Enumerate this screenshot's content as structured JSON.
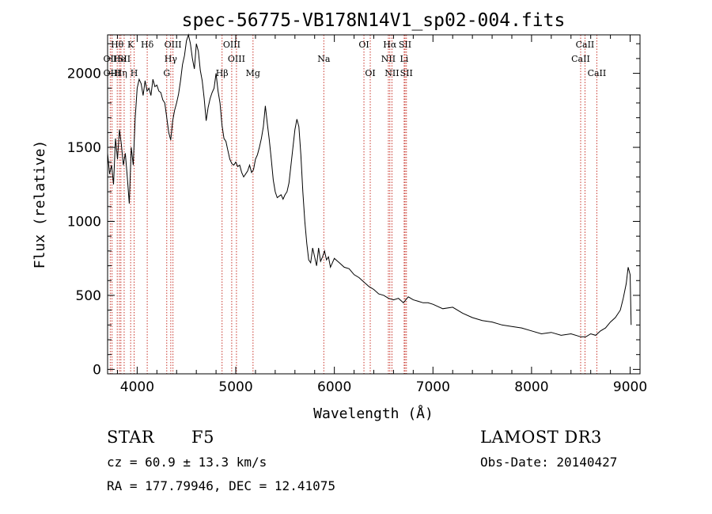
{
  "chart_data": {
    "type": "line",
    "title": "spec-56775-VB178N14V1_sp02-004.fits",
    "xlabel": "Wavelength (Å)",
    "ylabel": "Flux (relative)",
    "xlim": [
      3700,
      9100
    ],
    "ylim": [
      -30,
      2260
    ],
    "xticks": [
      4000,
      5000,
      6000,
      7000,
      8000,
      9000
    ],
    "yticks": [
      0,
      500,
      1000,
      1500,
      2000
    ],
    "series": [
      {
        "name": "flux",
        "x": [
          3700,
          3720,
          3740,
          3760,
          3780,
          3800,
          3820,
          3840,
          3860,
          3880,
          3900,
          3920,
          3940,
          3960,
          3980,
          4000,
          4020,
          4040,
          4060,
          4080,
          4100,
          4120,
          4140,
          4160,
          4180,
          4200,
          4220,
          4240,
          4260,
          4280,
          4300,
          4320,
          4340,
          4360,
          4380,
          4400,
          4420,
          4440,
          4460,
          4480,
          4500,
          4520,
          4540,
          4560,
          4580,
          4600,
          4620,
          4640,
          4660,
          4680,
          4700,
          4720,
          4740,
          4760,
          4780,
          4800,
          4820,
          4840,
          4860,
          4880,
          4900,
          4920,
          4940,
          4960,
          4980,
          5000,
          5020,
          5040,
          5060,
          5080,
          5100,
          5120,
          5140,
          5160,
          5180,
          5200,
          5220,
          5240,
          5260,
          5280,
          5300,
          5320,
          5340,
          5360,
          5380,
          5400,
          5420,
          5440,
          5460,
          5480,
          5500,
          5520,
          5540,
          5560,
          5580,
          5600,
          5620,
          5640,
          5660,
          5680,
          5700,
          5720,
          5740,
          5760,
          5780,
          5800,
          5820,
          5840,
          5860,
          5880,
          5900,
          5920,
          5940,
          5960,
          5980,
          6000,
          6050,
          6100,
          6150,
          6200,
          6250,
          6300,
          6350,
          6400,
          6450,
          6500,
          6550,
          6600,
          6650,
          6700,
          6750,
          6800,
          6850,
          6900,
          6950,
          7000,
          7100,
          7200,
          7300,
          7400,
          7500,
          7600,
          7700,
          7800,
          7900,
          8000,
          8100,
          8200,
          8300,
          8400,
          8500,
          8550,
          8600,
          8650,
          8700,
          8750,
          8800,
          8850,
          8900,
          8930,
          8960,
          8980,
          9000,
          9010
        ],
        "values": [
          1460,
          1320,
          1380,
          1250,
          1560,
          1420,
          1620,
          1520,
          1380,
          1460,
          1300,
          1120,
          1500,
          1380,
          1700,
          1900,
          1960,
          1930,
          1850,
          1950,
          1880,
          1900,
          1850,
          1960,
          1910,
          1920,
          1880,
          1870,
          1820,
          1800,
          1700,
          1600,
          1550,
          1680,
          1750,
          1800,
          1860,
          1950,
          2060,
          2120,
          2220,
          2260,
          2200,
          2100,
          2030,
          2200,
          2150,
          2020,
          1950,
          1830,
          1680,
          1770,
          1830,
          1870,
          1900,
          2000,
          1880,
          1800,
          1650,
          1560,
          1540,
          1480,
          1420,
          1390,
          1380,
          1400,
          1370,
          1380,
          1330,
          1300,
          1320,
          1340,
          1380,
          1330,
          1350,
          1420,
          1450,
          1500,
          1560,
          1640,
          1780,
          1660,
          1550,
          1420,
          1280,
          1200,
          1160,
          1170,
          1180,
          1150,
          1180,
          1200,
          1260,
          1380,
          1500,
          1620,
          1690,
          1640,
          1450,
          1200,
          1000,
          850,
          740,
          720,
          820,
          760,
          700,
          820,
          730,
          760,
          800,
          740,
          760,
          690,
          720,
          750,
          720,
          690,
          680,
          640,
          620,
          590,
          560,
          540,
          510,
          500,
          480,
          470,
          480,
          450,
          490,
          470,
          460,
          450,
          450,
          440,
          410,
          420,
          380,
          350,
          330,
          320,
          300,
          290,
          280,
          260,
          240,
          250,
          230,
          240,
          220,
          220,
          240,
          230,
          260,
          280,
          320,
          350,
          400,
          480,
          580,
          690,
          640,
          300
        ]
      }
    ],
    "line_markers": [
      {
        "label": "Hθ",
        "wavelength": 3798,
        "row": 0
      },
      {
        "label": "OII",
        "wavelength": 3727,
        "row": 1
      },
      {
        "label": "OIII",
        "wavelength": 3745,
        "row": 2
      },
      {
        "label": "He",
        "wavelength": 3820,
        "row": 1
      },
      {
        "label": "Hη",
        "wavelength": 3835,
        "row": 2
      },
      {
        "label": "K",
        "wavelength": 3934,
        "row": 0
      },
      {
        "label": "SII",
        "wavelength": 3868,
        "row": 1
      },
      {
        "label": "H",
        "wavelength": 3969,
        "row": 2
      },
      {
        "label": "Hδ",
        "wavelength": 4102,
        "row": 0
      },
      {
        "label": "OIII",
        "wavelength": 4363,
        "row": 0
      },
      {
        "label": "Hγ",
        "wavelength": 4341,
        "row": 1
      },
      {
        "label": "G",
        "wavelength": 4300,
        "row": 2
      },
      {
        "label": "Hβ",
        "wavelength": 4861,
        "row": 2
      },
      {
        "label": "OIII",
        "wavelength": 4959,
        "row": 0
      },
      {
        "label": "OIII",
        "wavelength": 5007,
        "row": 1
      },
      {
        "label": "Mg",
        "wavelength": 5175,
        "row": 2
      },
      {
        "label": "Na",
        "wavelength": 5893,
        "row": 1
      },
      {
        "label": "OI",
        "wavelength": 6300,
        "row": 0
      },
      {
        "label": "OI",
        "wavelength": 6364,
        "row": 2
      },
      {
        "label": "Hα",
        "wavelength": 6563,
        "row": 0
      },
      {
        "label": "NII",
        "wavelength": 6548,
        "row": 1
      },
      {
        "label": "NII",
        "wavelength": 6584,
        "row": 2
      },
      {
        "label": "SII",
        "wavelength": 6717,
        "row": 0
      },
      {
        "label": "Li",
        "wavelength": 6708,
        "row": 1
      },
      {
        "label": "SII",
        "wavelength": 6731,
        "row": 2
      },
      {
        "label": "CaII",
        "wavelength": 8542,
        "row": 0
      },
      {
        "label": "CaII",
        "wavelength": 8498,
        "row": 1
      },
      {
        "label": "CaII",
        "wavelength": 8662,
        "row": 2
      }
    ]
  },
  "info": {
    "class_label": "STAR",
    "subclass": "F5",
    "survey": "LAMOST DR3",
    "cz": "cz = 60.9 ± 13.3 km/s",
    "obs_date": "Obs-Date: 20140427",
    "coords": "RA = 177.79946, DEC =  12.41075"
  },
  "colors": {
    "line": "#000000",
    "marker": "#c8342a",
    "background": "#ffffff"
  }
}
